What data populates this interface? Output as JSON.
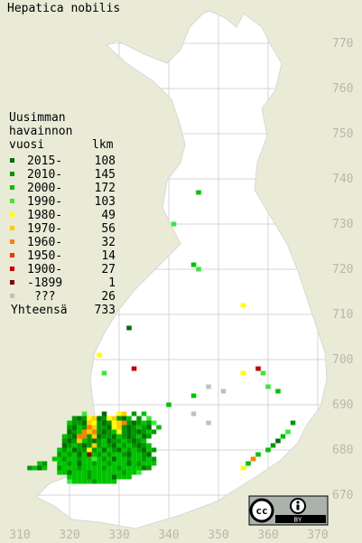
{
  "title": "Hepatica nobilis",
  "legend": {
    "header": [
      "Uusimman",
      "havainnon",
      "vuosi"
    ],
    "count_header": "lkm",
    "entries": [
      {
        "label": "2015-",
        "count": 108,
        "color": "#006e00"
      },
      {
        "label": "2010-",
        "count": 145,
        "color": "#009a00"
      },
      {
        "label": "2000-",
        "count": 172,
        "color": "#00c400"
      },
      {
        "label": "1990-",
        "count": 103,
        "color": "#33ec33"
      },
      {
        "label": "1980-",
        "count": 49,
        "color": "#ffff00"
      },
      {
        "label": "1970-",
        "count": 56,
        "color": "#ffcc00"
      },
      {
        "label": "1960-",
        "count": 32,
        "color": "#ff8000"
      },
      {
        "label": "1950-",
        "count": 14,
        "color": "#ff3000"
      },
      {
        "label": "1900-",
        "count": 27,
        "color": "#cc0000"
      },
      {
        "label": "-1899",
        "count": 1,
        "color": "#8b0000"
      },
      {
        "label": "???",
        "count": 26,
        "color": "#c0c0c0"
      }
    ],
    "total_label": "Yhteensä",
    "total": 733
  },
  "xticks": [
    310,
    320,
    330,
    340,
    350,
    360,
    370
  ],
  "yticks": [
    670,
    680,
    690,
    700,
    710,
    720,
    730,
    740,
    750,
    760,
    770
  ],
  "license": {
    "cc": "cc",
    "by": "BY"
  },
  "squares": [
    [
      346,
      737,
      2
    ],
    [
      341,
      730,
      3
    ],
    [
      345,
      721,
      2
    ],
    [
      346,
      720,
      3
    ],
    [
      355,
      712,
      4
    ],
    [
      332,
      707,
      0
    ],
    [
      326,
      701,
      4
    ],
    [
      327,
      697,
      3
    ],
    [
      333,
      698,
      8
    ],
    [
      358,
      698,
      8
    ],
    [
      355,
      697,
      4
    ],
    [
      359,
      697,
      3
    ],
    [
      348,
      694,
      10
    ],
    [
      345,
      692,
      2
    ],
    [
      351,
      693,
      10
    ],
    [
      360,
      694,
      3
    ],
    [
      362,
      693,
      2
    ],
    [
      340,
      690,
      2
    ],
    [
      345,
      688,
      10
    ],
    [
      348,
      686,
      10
    ],
    [
      323,
      688,
      3
    ],
    [
      327,
      688,
      0
    ],
    [
      330,
      688,
      4
    ],
    [
      331,
      688,
      5
    ],
    [
      333,
      688,
      1
    ],
    [
      335,
      688,
      2
    ],
    [
      321,
      687,
      1
    ],
    [
      322,
      687,
      0
    ],
    [
      323,
      687,
      1
    ],
    [
      324,
      687,
      4
    ],
    [
      325,
      687,
      5
    ],
    [
      326,
      687,
      0
    ],
    [
      327,
      687,
      1
    ],
    [
      328,
      687,
      4
    ],
    [
      329,
      687,
      5
    ],
    [
      330,
      687,
      1
    ],
    [
      331,
      687,
      0
    ],
    [
      332,
      687,
      2
    ],
    [
      334,
      687,
      1
    ],
    [
      336,
      687,
      3
    ],
    [
      320,
      686,
      2
    ],
    [
      321,
      686,
      1
    ],
    [
      322,
      686,
      1
    ],
    [
      323,
      686,
      0
    ],
    [
      324,
      686,
      5
    ],
    [
      325,
      686,
      4
    ],
    [
      326,
      686,
      1
    ],
    [
      327,
      686,
      0
    ],
    [
      328,
      686,
      1
    ],
    [
      329,
      686,
      4
    ],
    [
      330,
      686,
      5
    ],
    [
      331,
      686,
      6
    ],
    [
      332,
      686,
      1
    ],
    [
      333,
      686,
      0
    ],
    [
      334,
      686,
      1
    ],
    [
      335,
      686,
      2
    ],
    [
      336,
      686,
      1
    ],
    [
      337,
      686,
      3
    ],
    [
      320,
      685,
      1
    ],
    [
      321,
      685,
      0
    ],
    [
      322,
      685,
      2
    ],
    [
      323,
      685,
      1
    ],
    [
      324,
      685,
      6
    ],
    [
      325,
      685,
      5
    ],
    [
      326,
      685,
      1
    ],
    [
      327,
      685,
      1
    ],
    [
      328,
      685,
      0
    ],
    [
      329,
      685,
      4
    ],
    [
      330,
      685,
      5
    ],
    [
      331,
      685,
      1
    ],
    [
      332,
      685,
      0
    ],
    [
      333,
      685,
      1
    ],
    [
      334,
      685,
      2
    ],
    [
      335,
      685,
      1
    ],
    [
      336,
      685,
      0
    ],
    [
      338,
      685,
      2
    ],
    [
      320,
      684,
      0
    ],
    [
      321,
      684,
      1
    ],
    [
      322,
      684,
      2
    ],
    [
      323,
      684,
      6
    ],
    [
      324,
      684,
      5
    ],
    [
      325,
      684,
      6
    ],
    [
      326,
      684,
      1
    ],
    [
      327,
      684,
      0
    ],
    [
      328,
      684,
      1
    ],
    [
      329,
      684,
      2
    ],
    [
      330,
      684,
      4
    ],
    [
      331,
      684,
      1
    ],
    [
      332,
      684,
      0
    ],
    [
      333,
      684,
      1
    ],
    [
      334,
      684,
      0
    ],
    [
      335,
      684,
      1
    ],
    [
      336,
      684,
      2
    ],
    [
      337,
      684,
      1
    ],
    [
      319,
      683,
      2
    ],
    [
      320,
      683,
      1
    ],
    [
      321,
      683,
      0
    ],
    [
      322,
      683,
      6
    ],
    [
      323,
      683,
      6
    ],
    [
      324,
      683,
      1
    ],
    [
      325,
      683,
      5
    ],
    [
      326,
      683,
      0
    ],
    [
      327,
      683,
      1
    ],
    [
      328,
      683,
      1
    ],
    [
      329,
      683,
      0
    ],
    [
      330,
      683,
      2
    ],
    [
      331,
      683,
      1
    ],
    [
      332,
      683,
      0
    ],
    [
      333,
      683,
      1
    ],
    [
      334,
      683,
      2
    ],
    [
      335,
      683,
      0
    ],
    [
      336,
      683,
      1
    ],
    [
      319,
      682,
      1
    ],
    [
      320,
      682,
      0
    ],
    [
      321,
      682,
      1
    ],
    [
      322,
      682,
      5
    ],
    [
      323,
      682,
      2
    ],
    [
      324,
      682,
      1
    ],
    [
      325,
      682,
      0
    ],
    [
      326,
      682,
      1
    ],
    [
      327,
      682,
      2
    ],
    [
      328,
      682,
      0
    ],
    [
      329,
      682,
      1
    ],
    [
      330,
      682,
      1
    ],
    [
      331,
      682,
      2
    ],
    [
      332,
      682,
      1
    ],
    [
      333,
      682,
      0
    ],
    [
      334,
      682,
      1
    ],
    [
      335,
      682,
      2
    ],
    [
      319,
      681,
      0
    ],
    [
      320,
      681,
      1
    ],
    [
      321,
      681,
      2
    ],
    [
      322,
      681,
      1
    ],
    [
      323,
      681,
      0
    ],
    [
      324,
      681,
      1
    ],
    [
      325,
      681,
      5
    ],
    [
      326,
      681,
      1
    ],
    [
      327,
      681,
      2
    ],
    [
      328,
      681,
      1
    ],
    [
      329,
      681,
      0
    ],
    [
      330,
      681,
      2
    ],
    [
      331,
      681,
      1
    ],
    [
      332,
      681,
      2
    ],
    [
      333,
      681,
      1
    ],
    [
      334,
      681,
      0
    ],
    [
      335,
      681,
      1
    ],
    [
      336,
      681,
      2
    ],
    [
      318,
      680,
      2
    ],
    [
      319,
      680,
      1
    ],
    [
      320,
      680,
      2
    ],
    [
      321,
      680,
      0
    ],
    [
      322,
      680,
      1
    ],
    [
      323,
      680,
      1
    ],
    [
      324,
      680,
      4
    ],
    [
      325,
      680,
      1
    ],
    [
      326,
      680,
      2
    ],
    [
      327,
      680,
      0
    ],
    [
      328,
      680,
      2
    ],
    [
      329,
      680,
      1
    ],
    [
      330,
      680,
      0
    ],
    [
      331,
      680,
      2
    ],
    [
      332,
      680,
      1
    ],
    [
      333,
      680,
      2
    ],
    [
      334,
      680,
      1
    ],
    [
      335,
      680,
      0
    ],
    [
      336,
      680,
      2
    ],
    [
      337,
      680,
      1
    ],
    [
      318,
      679,
      1
    ],
    [
      319,
      679,
      2
    ],
    [
      320,
      679,
      1
    ],
    [
      321,
      679,
      2
    ],
    [
      322,
      679,
      0
    ],
    [
      323,
      679,
      2
    ],
    [
      324,
      679,
      9
    ],
    [
      325,
      679,
      2
    ],
    [
      326,
      679,
      1
    ],
    [
      327,
      679,
      2
    ],
    [
      328,
      679,
      1
    ],
    [
      329,
      679,
      2
    ],
    [
      330,
      679,
      2
    ],
    [
      331,
      679,
      1
    ],
    [
      332,
      679,
      0
    ],
    [
      333,
      679,
      2
    ],
    [
      334,
      679,
      2
    ],
    [
      335,
      679,
      1
    ],
    [
      336,
      679,
      0
    ],
    [
      317,
      678,
      2
    ],
    [
      318,
      678,
      2
    ],
    [
      319,
      678,
      1
    ],
    [
      320,
      678,
      2
    ],
    [
      321,
      678,
      2
    ],
    [
      322,
      678,
      1
    ],
    [
      323,
      678,
      2
    ],
    [
      324,
      678,
      2
    ],
    [
      325,
      678,
      3
    ],
    [
      326,
      678,
      2
    ],
    [
      327,
      678,
      1
    ],
    [
      328,
      678,
      2
    ],
    [
      329,
      678,
      0
    ],
    [
      330,
      678,
      2
    ],
    [
      331,
      678,
      2
    ],
    [
      332,
      678,
      1
    ],
    [
      333,
      678,
      2
    ],
    [
      334,
      678,
      2
    ],
    [
      335,
      678,
      1
    ],
    [
      336,
      678,
      2
    ],
    [
      337,
      678,
      1
    ],
    [
      314,
      677,
      2
    ],
    [
      315,
      677,
      1
    ],
    [
      318,
      677,
      2
    ],
    [
      319,
      677,
      2
    ],
    [
      320,
      677,
      1
    ],
    [
      321,
      677,
      2
    ],
    [
      322,
      677,
      0
    ],
    [
      323,
      677,
      2
    ],
    [
      324,
      677,
      2
    ],
    [
      325,
      677,
      1
    ],
    [
      326,
      677,
      2
    ],
    [
      327,
      677,
      2
    ],
    [
      328,
      677,
      1
    ],
    [
      329,
      677,
      2
    ],
    [
      330,
      677,
      2
    ],
    [
      331,
      677,
      2
    ],
    [
      332,
      677,
      0
    ],
    [
      333,
      677,
      2
    ],
    [
      334,
      677,
      1
    ],
    [
      335,
      677,
      2
    ],
    [
      336,
      677,
      2
    ],
    [
      337,
      677,
      2
    ],
    [
      312,
      676,
      1
    ],
    [
      313,
      676,
      2
    ],
    [
      314,
      676,
      0
    ],
    [
      315,
      676,
      2
    ],
    [
      318,
      676,
      1
    ],
    [
      319,
      676,
      2
    ],
    [
      320,
      676,
      2
    ],
    [
      321,
      676,
      2
    ],
    [
      322,
      676,
      1
    ],
    [
      323,
      676,
      2
    ],
    [
      324,
      676,
      2
    ],
    [
      325,
      676,
      2
    ],
    [
      326,
      676,
      2
    ],
    [
      327,
      676,
      1
    ],
    [
      328,
      676,
      2
    ],
    [
      329,
      676,
      2
    ],
    [
      330,
      676,
      1
    ],
    [
      331,
      676,
      2
    ],
    [
      332,
      676,
      2
    ],
    [
      333,
      676,
      2
    ],
    [
      334,
      676,
      2
    ],
    [
      335,
      676,
      0
    ],
    [
      336,
      676,
      1
    ],
    [
      318,
      675,
      2
    ],
    [
      319,
      675,
      2
    ],
    [
      320,
      675,
      0
    ],
    [
      321,
      675,
      2
    ],
    [
      322,
      675,
      2
    ],
    [
      323,
      675,
      2
    ],
    [
      324,
      675,
      1
    ],
    [
      325,
      675,
      2
    ],
    [
      326,
      675,
      2
    ],
    [
      327,
      675,
      2
    ],
    [
      328,
      675,
      2
    ],
    [
      329,
      675,
      2
    ],
    [
      330,
      675,
      2
    ],
    [
      331,
      675,
      1
    ],
    [
      332,
      675,
      2
    ],
    [
      333,
      675,
      2
    ],
    [
      334,
      675,
      3
    ],
    [
      320,
      674,
      2
    ],
    [
      321,
      674,
      2
    ],
    [
      322,
      674,
      2
    ],
    [
      323,
      674,
      2
    ],
    [
      324,
      674,
      1
    ],
    [
      325,
      674,
      2
    ],
    [
      326,
      674,
      2
    ],
    [
      327,
      674,
      2
    ],
    [
      328,
      674,
      2
    ],
    [
      329,
      674,
      0
    ],
    [
      330,
      674,
      2
    ],
    [
      331,
      674,
      2
    ],
    [
      332,
      674,
      2
    ],
    [
      320,
      673,
      3
    ],
    [
      321,
      673,
      2
    ],
    [
      322,
      673,
      2
    ],
    [
      323,
      673,
      2
    ],
    [
      324,
      673,
      2
    ],
    [
      325,
      673,
      1
    ],
    [
      326,
      673,
      2
    ],
    [
      327,
      673,
      2
    ],
    [
      328,
      673,
      2
    ],
    [
      329,
      673,
      2
    ],
    [
      355,
      676,
      4
    ],
    [
      356,
      677,
      2
    ],
    [
      357,
      678,
      6
    ],
    [
      358,
      679,
      2
    ],
    [
      360,
      680,
      2
    ],
    [
      361,
      681,
      1
    ],
    [
      362,
      682,
      0
    ],
    [
      363,
      683,
      2
    ],
    [
      364,
      684,
      3
    ],
    [
      365,
      686,
      1
    ]
  ]
}
